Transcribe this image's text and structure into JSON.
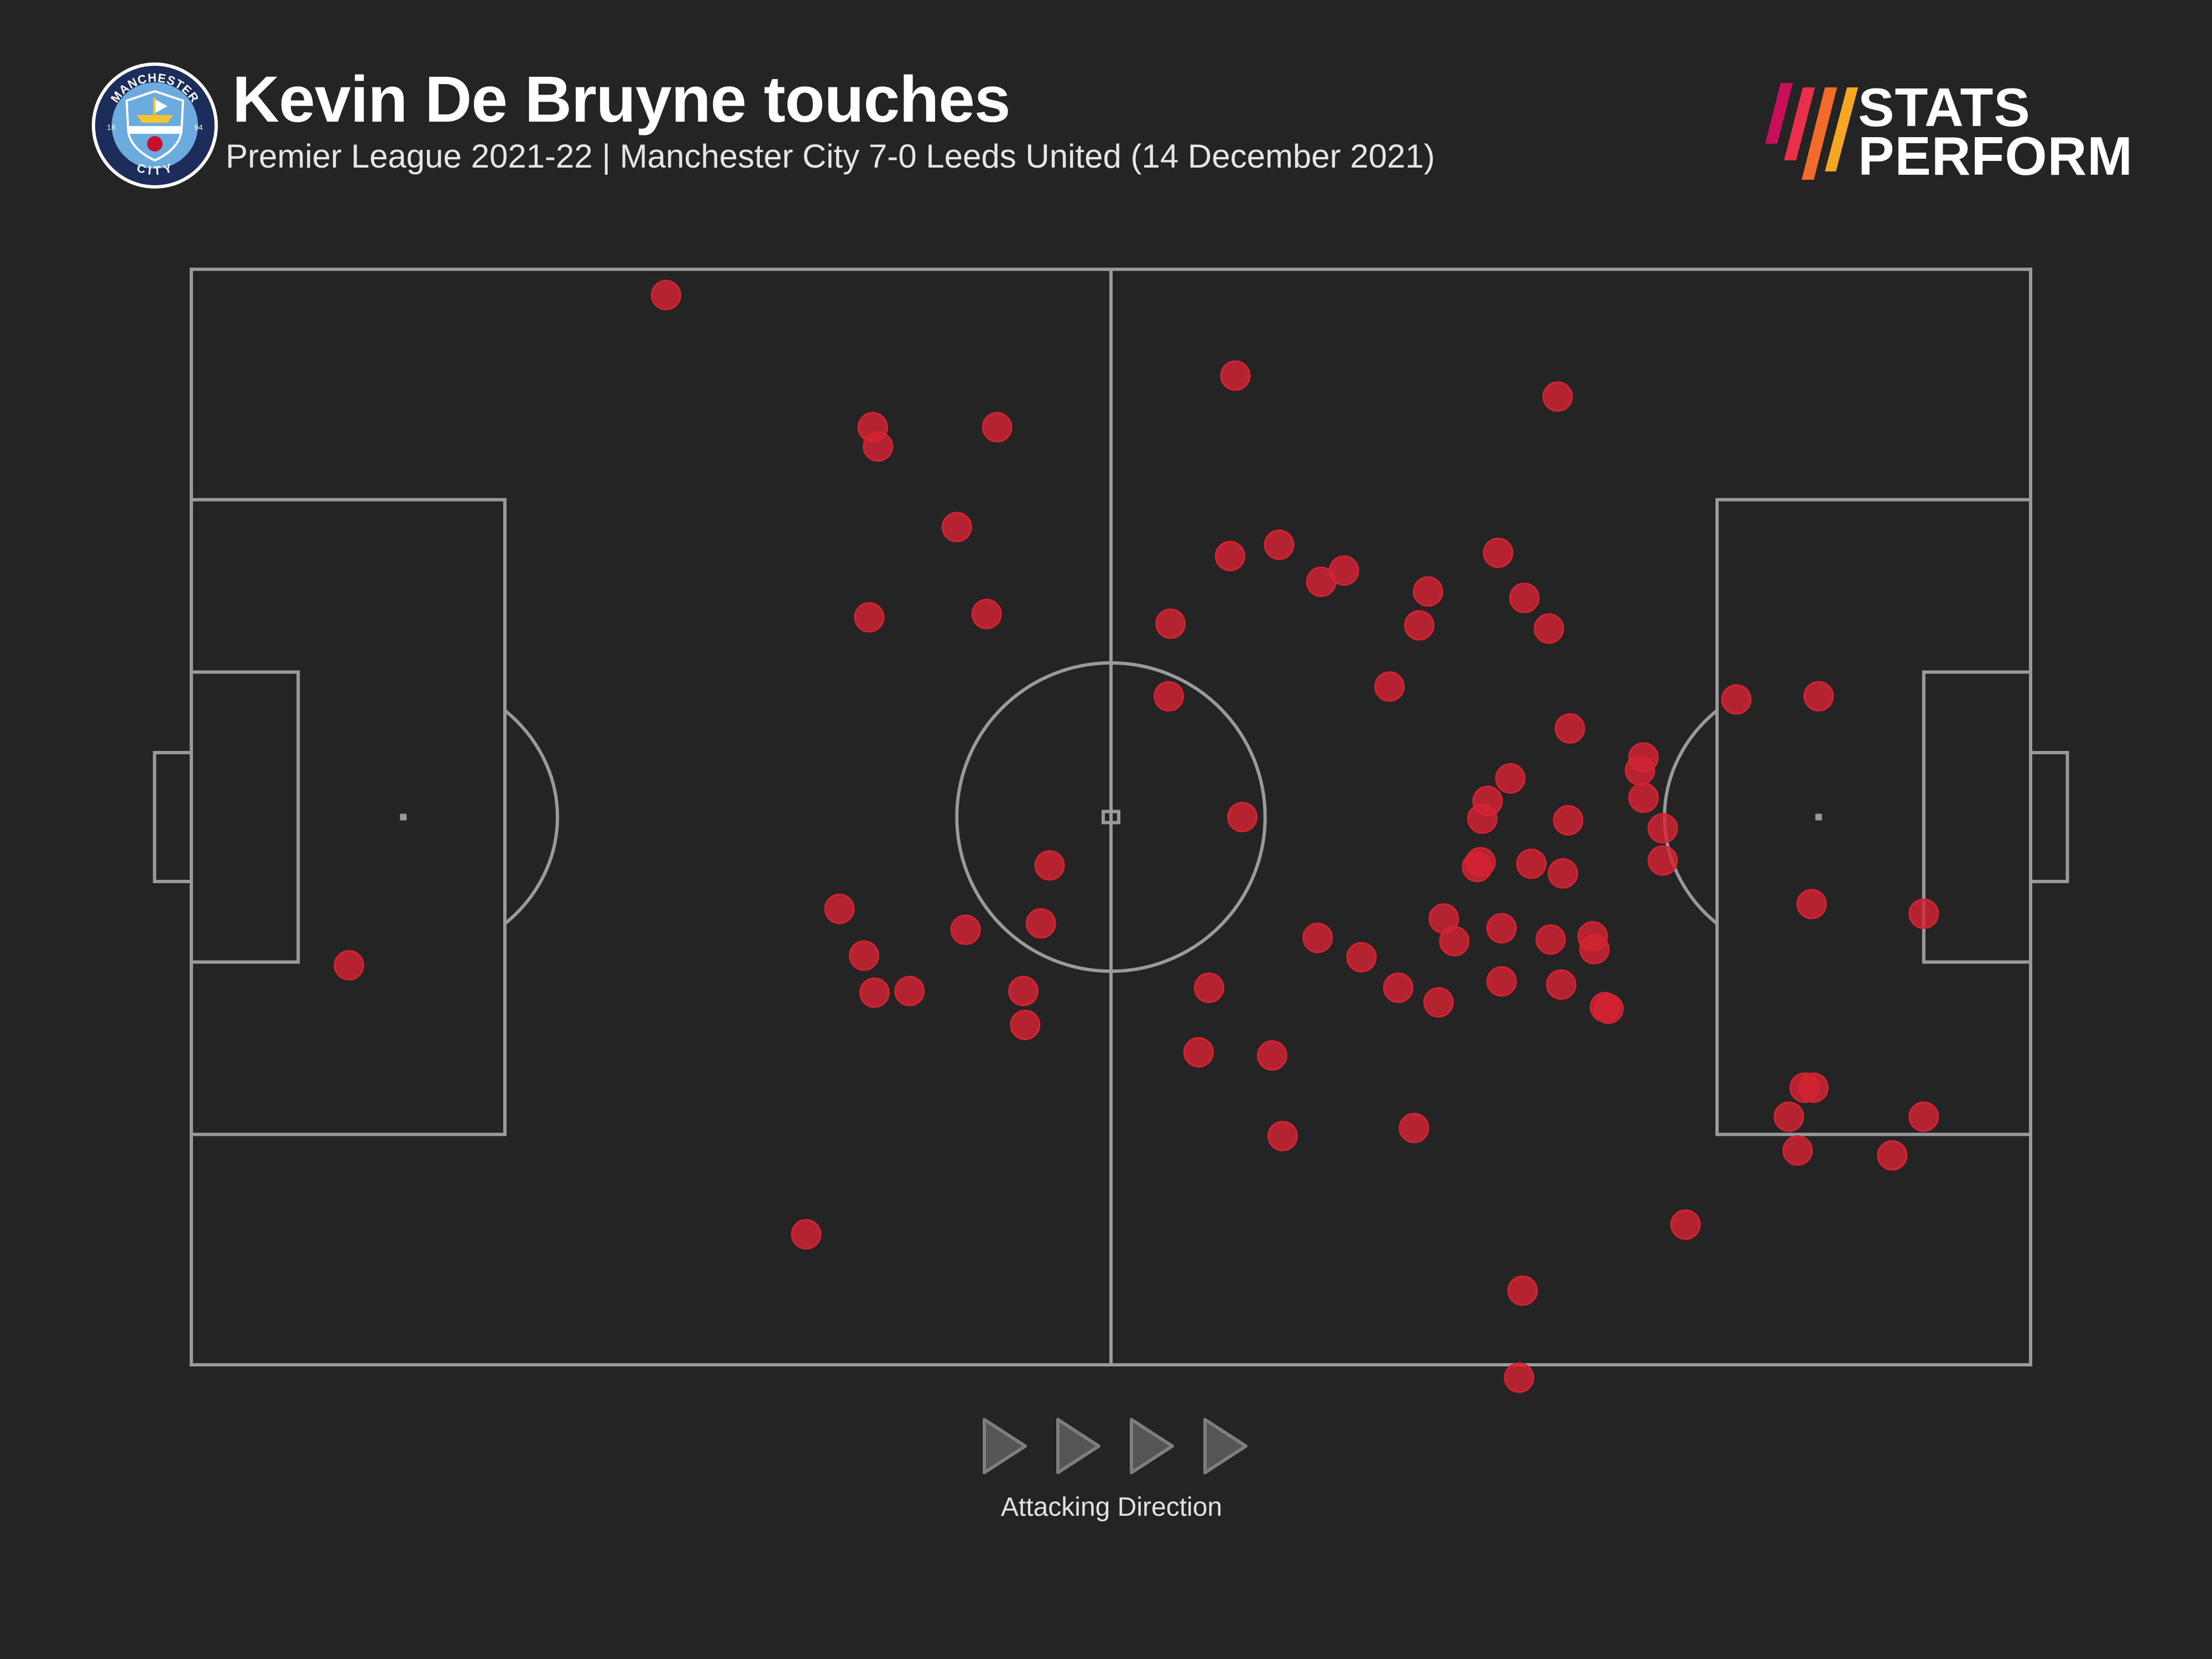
{
  "header": {
    "title": "Kevin De Bruyne touches",
    "subtitle": "Premier League 2021-22 | Manchester City 7-0 Leeds United (14 December 2021)",
    "crest": {
      "top_text": "MANCHESTER",
      "bottom_text": "CITY",
      "year_left": "18",
      "year_right": "94",
      "colors": {
        "ring": "#1c2c5b",
        "sky": "#6cabdd",
        "gold": "#f4c430",
        "red": "#c8102e"
      }
    },
    "brand": {
      "line1": "STATS",
      "line2": "PERFORM",
      "icon": "stats-perform-slashes-icon",
      "colors": [
        "#c8105a",
        "#e8304a",
        "#f26b2a",
        "#f5a623"
      ]
    }
  },
  "footer": {
    "direction_label": "Attacking Direction",
    "arrow_count": 4,
    "arrow_icon": "triangle-right-icon"
  },
  "colors": {
    "background": "#242424",
    "pitch_lines": "#9a9a9a",
    "touch": "#d42332",
    "arrow": "#7e7e7e"
  },
  "chart_data": {
    "type": "scatter",
    "title": "Kevin De Bruyne touches",
    "subtitle": "Premier League 2021-22 | Manchester City 7-0 Leeds United (14 December 2021)",
    "xlabel": "",
    "ylabel": "",
    "xlim": [
      0,
      105
    ],
    "ylim": [
      0,
      68
    ],
    "grid": false,
    "series": [
      {
        "points": [
          [
            27.1,
            66.4
          ],
          [
            59.6,
            61.4
          ],
          [
            78.0,
            60.1
          ],
          [
            38.9,
            58.2
          ],
          [
            39.2,
            57.0
          ],
          [
            46.0,
            58.2
          ],
          [
            43.7,
            52.0
          ],
          [
            38.7,
            46.4
          ],
          [
            45.4,
            46.6
          ],
          [
            59.3,
            50.2
          ],
          [
            62.1,
            50.9
          ],
          [
            65.8,
            49.3
          ],
          [
            64.5,
            48.6
          ],
          [
            55.9,
            46.0
          ],
          [
            55.8,
            41.5
          ],
          [
            74.6,
            50.4
          ],
          [
            70.6,
            48.0
          ],
          [
            76.1,
            47.6
          ],
          [
            77.5,
            45.7
          ],
          [
            70.1,
            45.9
          ],
          [
            68.4,
            42.1
          ],
          [
            88.2,
            41.3
          ],
          [
            92.9,
            41.5
          ],
          [
            78.7,
            39.5
          ],
          [
            75.3,
            36.4
          ],
          [
            82.9,
            37.7
          ],
          [
            82.7,
            36.9
          ],
          [
            82.9,
            35.2
          ],
          [
            74.0,
            35.0
          ],
          [
            73.7,
            33.9
          ],
          [
            84.0,
            33.3
          ],
          [
            78.6,
            33.8
          ],
          [
            84.0,
            31.3
          ],
          [
            73.6,
            31.2
          ],
          [
            73.4,
            30.9
          ],
          [
            76.5,
            31.1
          ],
          [
            78.3,
            30.5
          ],
          [
            49.0,
            31.0
          ],
          [
            60.0,
            34.0
          ],
          [
            37.0,
            28.3
          ],
          [
            48.5,
            27.4
          ],
          [
            44.2,
            27.0
          ],
          [
            38.4,
            25.4
          ],
          [
            41.0,
            23.2
          ],
          [
            39.0,
            23.1
          ],
          [
            47.5,
            23.2
          ],
          [
            47.6,
            21.1
          ],
          [
            74.8,
            27.1
          ],
          [
            72.1,
            26.3
          ],
          [
            71.5,
            27.7
          ],
          [
            74.8,
            23.8
          ],
          [
            77.6,
            26.4
          ],
          [
            78.2,
            23.6
          ],
          [
            80.7,
            22.2
          ],
          [
            80.9,
            22.1
          ],
          [
            80.1,
            25.8
          ],
          [
            80.0,
            26.6
          ],
          [
            64.3,
            26.5
          ],
          [
            66.8,
            25.3
          ],
          [
            58.1,
            23.4
          ],
          [
            68.9,
            23.4
          ],
          [
            71.2,
            22.5
          ],
          [
            92.5,
            28.6
          ],
          [
            98.9,
            28.0
          ],
          [
            9.0,
            24.8
          ],
          [
            57.5,
            19.4
          ],
          [
            61.7,
            19.2
          ],
          [
            92.1,
            17.2
          ],
          [
            92.6,
            17.2
          ],
          [
            91.2,
            15.4
          ],
          [
            98.9,
            15.4
          ],
          [
            62.3,
            14.2
          ],
          [
            69.8,
            14.7
          ],
          [
            91.7,
            13.3
          ],
          [
            97.1,
            13.0
          ],
          [
            35.1,
            8.1
          ],
          [
            85.3,
            8.7
          ],
          [
            76.0,
            4.6
          ],
          [
            75.8,
            -0.8
          ]
        ]
      }
    ],
    "pitch": {
      "length": 105,
      "width": 68,
      "penalty_area_depth": 17.9,
      "penalty_area_width": 39.4,
      "six_yard_depth": 6.1,
      "six_yard_width": 18.0,
      "goal_depth": 2.1,
      "goal_width": 8.0,
      "centre_circle_radius": 8.8,
      "penalty_spot": 12.1,
      "penalty_arc_radius": 8.8
    },
    "attacking_direction": "left-to-right"
  }
}
